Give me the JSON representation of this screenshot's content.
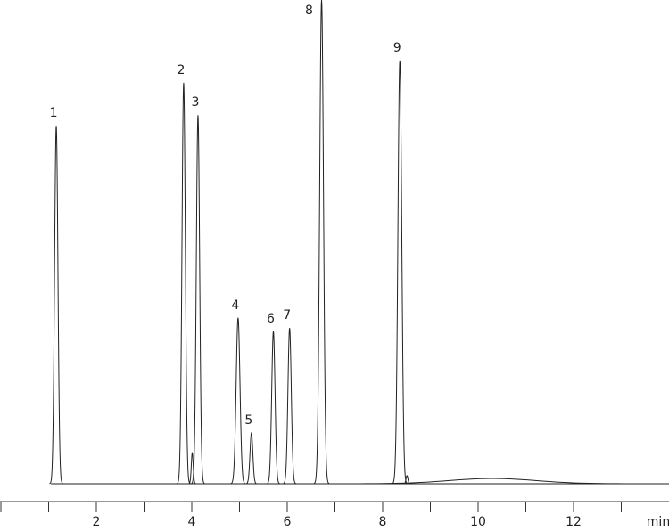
{
  "chart_data": {
    "type": "chromatogram",
    "x_label": "min",
    "xlim": [
      0,
      14
    ],
    "xticks": [
      2,
      4,
      6,
      8,
      10,
      12
    ],
    "xminorticks": [
      0,
      1,
      3,
      5,
      7,
      9,
      11,
      13
    ],
    "ylim": [
      0,
      100
    ],
    "color": "#222222",
    "peaks": [
      {
        "label": "1",
        "time": 1.16,
        "height": 74.0,
        "width": 0.035
      },
      {
        "label": "2",
        "time": 3.83,
        "height": 82.9,
        "width": 0.035
      },
      {
        "label": null,
        "time": 4.01,
        "height": 6.4,
        "width": 0.02
      },
      {
        "label": "3",
        "time": 4.13,
        "height": 76.2,
        "width": 0.035
      },
      {
        "label": "4",
        "time": 4.97,
        "height": 34.3,
        "width": 0.04
      },
      {
        "label": "5",
        "time": 5.25,
        "height": 10.5,
        "width": 0.03
      },
      {
        "label": "6",
        "time": 5.71,
        "height": 31.5,
        "width": 0.035
      },
      {
        "label": "7",
        "time": 6.05,
        "height": 32.2,
        "width": 0.035
      },
      {
        "label": "8",
        "time": 6.72,
        "height": 100,
        "width": 0.04
      },
      {
        "label": "9",
        "time": 8.36,
        "height": 87.5,
        "width": 0.04
      },
      {
        "label": null,
        "time": 8.51,
        "height": 1.7,
        "width": 0.02
      },
      {
        "label": null,
        "time": 10.3,
        "height": 1.1,
        "width": 0.9
      }
    ]
  }
}
